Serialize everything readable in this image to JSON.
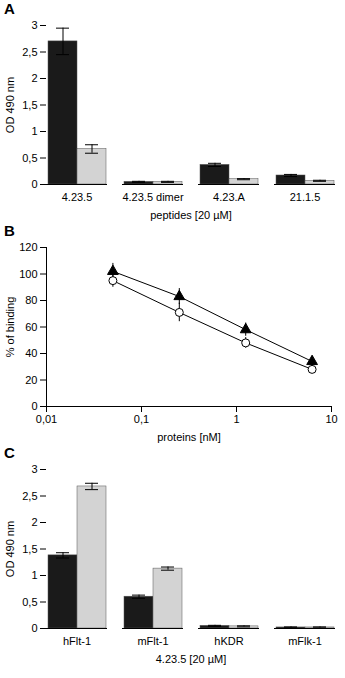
{
  "chart_data": [
    {
      "type": "bar",
      "title": "A",
      "x_label": "peptides [20 µM]",
      "y_label": "OD 490 nm",
      "categories": [
        "4.23.5",
        "4.23.5 dimer",
        "4.23.A",
        "21.1.5"
      ],
      "series": [
        {
          "color": "#1a1a1a",
          "values": [
            2.7,
            0.05,
            0.37,
            0.17
          ],
          "errors": [
            0.25,
            0.01,
            0.03,
            0.02
          ]
        },
        {
          "color": "#d3d3d3",
          "values": [
            0.67,
            0.05,
            0.1,
            0.07
          ],
          "errors": [
            0.08,
            0.01,
            0.01,
            0.01
          ]
        }
      ],
      "ylim": [
        0,
        3
      ],
      "yticks": [
        0,
        {
          "value": 0.5,
          "label": "0,5"
        },
        1,
        {
          "value": 1.5,
          "label": "1,5"
        },
        2,
        {
          "value": 2.5,
          "label": "2,5"
        },
        3
      ],
      "grid": false
    },
    {
      "type": "line",
      "title": "B",
      "x_label": "proteins [nM]",
      "y_label": "% of binding",
      "x": [
        0.05,
        0.25,
        1.25,
        6.25
      ],
      "series": [
        {
          "color": "#000000",
          "marker": "triangle",
          "line_style": "solid",
          "values": [
            102,
            83,
            58,
            34
          ],
          "errors": [
            6,
            6,
            5,
            4
          ]
        },
        {
          "color": "#ffffff",
          "marker": "circle",
          "line_style": "solid",
          "values": [
            95,
            71,
            48,
            28
          ],
          "errors": [
            5,
            7,
            4,
            3
          ]
        }
      ],
      "log": "x",
      "xlim": [
        0.01,
        10
      ],
      "xticks": [
        {
          "value": 0.01,
          "label": "0,01"
        },
        {
          "value": 0.1,
          "label": "0,1"
        },
        1,
        10
      ],
      "ylim": [
        0,
        120
      ],
      "yticks": [
        0,
        20,
        40,
        60,
        80,
        100,
        120
      ],
      "grid": false
    },
    {
      "type": "bar",
      "title": "C",
      "x_label": "4.23.5 [20 µM]",
      "y_label": "OD 490 nm",
      "categories": [
        "hFlt-1",
        "mFlt-1",
        "hKDR",
        "mFlk-1"
      ],
      "series": [
        {
          "color": "#1a1a1a",
          "values": [
            1.38,
            0.6,
            0.05,
            0.02
          ],
          "errors": [
            0.05,
            0.03,
            0.01,
            0.01
          ]
        },
        {
          "color": "#d3d3d3",
          "values": [
            2.68,
            1.13,
            0.04,
            0.02
          ],
          "errors": [
            0.06,
            0.03,
            0.01,
            0.01
          ]
        }
      ],
      "ylim": [
        0,
        3
      ],
      "yticks": [
        0,
        {
          "value": 0.5,
          "label": "0,5"
        },
        1,
        {
          "value": 1.5,
          "label": "1,5"
        },
        2,
        {
          "value": 2.5,
          "label": "2,5"
        },
        3
      ],
      "grid": false
    }
  ]
}
